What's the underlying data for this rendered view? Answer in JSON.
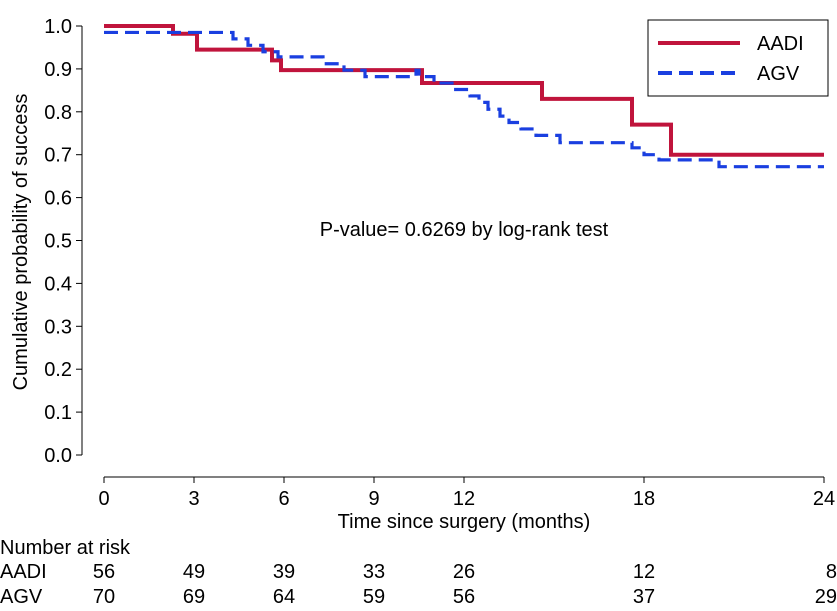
{
  "chart_data": {
    "type": "line",
    "step": true,
    "title": "",
    "xlabel": "Time since surgery (months)",
    "ylabel": "Cumulative probability of success",
    "xlim": [
      0,
      24
    ],
    "ylim": [
      0,
      1.0
    ],
    "x_ticks": [
      0,
      3,
      6,
      9,
      12,
      18,
      24
    ],
    "y_ticks": [
      0.0,
      0.1,
      0.2,
      0.3,
      0.4,
      0.5,
      0.6,
      0.7,
      0.8,
      0.9,
      1.0
    ],
    "x_tick_labels": [
      "0",
      "3",
      "6",
      "9",
      "12",
      "18",
      "24"
    ],
    "y_tick_labels": [
      "0.0",
      "0.1",
      "0.2",
      "0.3",
      "0.4",
      "0.5",
      "0.6",
      "0.7",
      "0.8",
      "0.9",
      "1.0"
    ],
    "grid": false,
    "legend_position": "top-right",
    "annotation": "P-value= 0.6269 by log-rank test",
    "series": [
      {
        "name": "AADI",
        "color": "#c0143c",
        "style": "solid",
        "points": [
          [
            0,
            1.0
          ],
          [
            2.3,
            0.982
          ],
          [
            3.1,
            0.945
          ],
          [
            5.6,
            0.92
          ],
          [
            5.9,
            0.897
          ],
          [
            10.6,
            0.867
          ],
          [
            14.6,
            0.83
          ],
          [
            17.6,
            0.77
          ],
          [
            18.9,
            0.7
          ],
          [
            24,
            0.7
          ]
        ]
      },
      {
        "name": "AGV",
        "color": "#1a3fe0",
        "style": "dashed",
        "points": [
          [
            0,
            0.985
          ],
          [
            4.3,
            0.97
          ],
          [
            4.8,
            0.955
          ],
          [
            5.3,
            0.94
          ],
          [
            5.8,
            0.928
          ],
          [
            7.3,
            0.912
          ],
          [
            8.0,
            0.897
          ],
          [
            8.7,
            0.882
          ],
          [
            10.4,
            0.897
          ],
          [
            10.5,
            0.882
          ],
          [
            11.0,
            0.867
          ],
          [
            11.6,
            0.852
          ],
          [
            12.2,
            0.837
          ],
          [
            12.5,
            0.822
          ],
          [
            12.8,
            0.806
          ],
          [
            13.2,
            0.79
          ],
          [
            13.5,
            0.775
          ],
          [
            13.9,
            0.76
          ],
          [
            14.4,
            0.745
          ],
          [
            15.2,
            0.728
          ],
          [
            17.6,
            0.716
          ],
          [
            18.0,
            0.7
          ],
          [
            18.5,
            0.688
          ],
          [
            20.5,
            0.672
          ],
          [
            24,
            0.672
          ]
        ]
      }
    ]
  },
  "risk_table": {
    "title": "Number at risk",
    "times": [
      0,
      3,
      6,
      9,
      12,
      18,
      24
    ],
    "rows": [
      {
        "label": "AADI",
        "values": [
          "56",
          "49",
          "39",
          "33",
          "26",
          "12",
          "8"
        ]
      },
      {
        "label": "AGV",
        "values": [
          "70",
          "69",
          "64",
          "59",
          "56",
          "37",
          "29"
        ]
      }
    ]
  }
}
